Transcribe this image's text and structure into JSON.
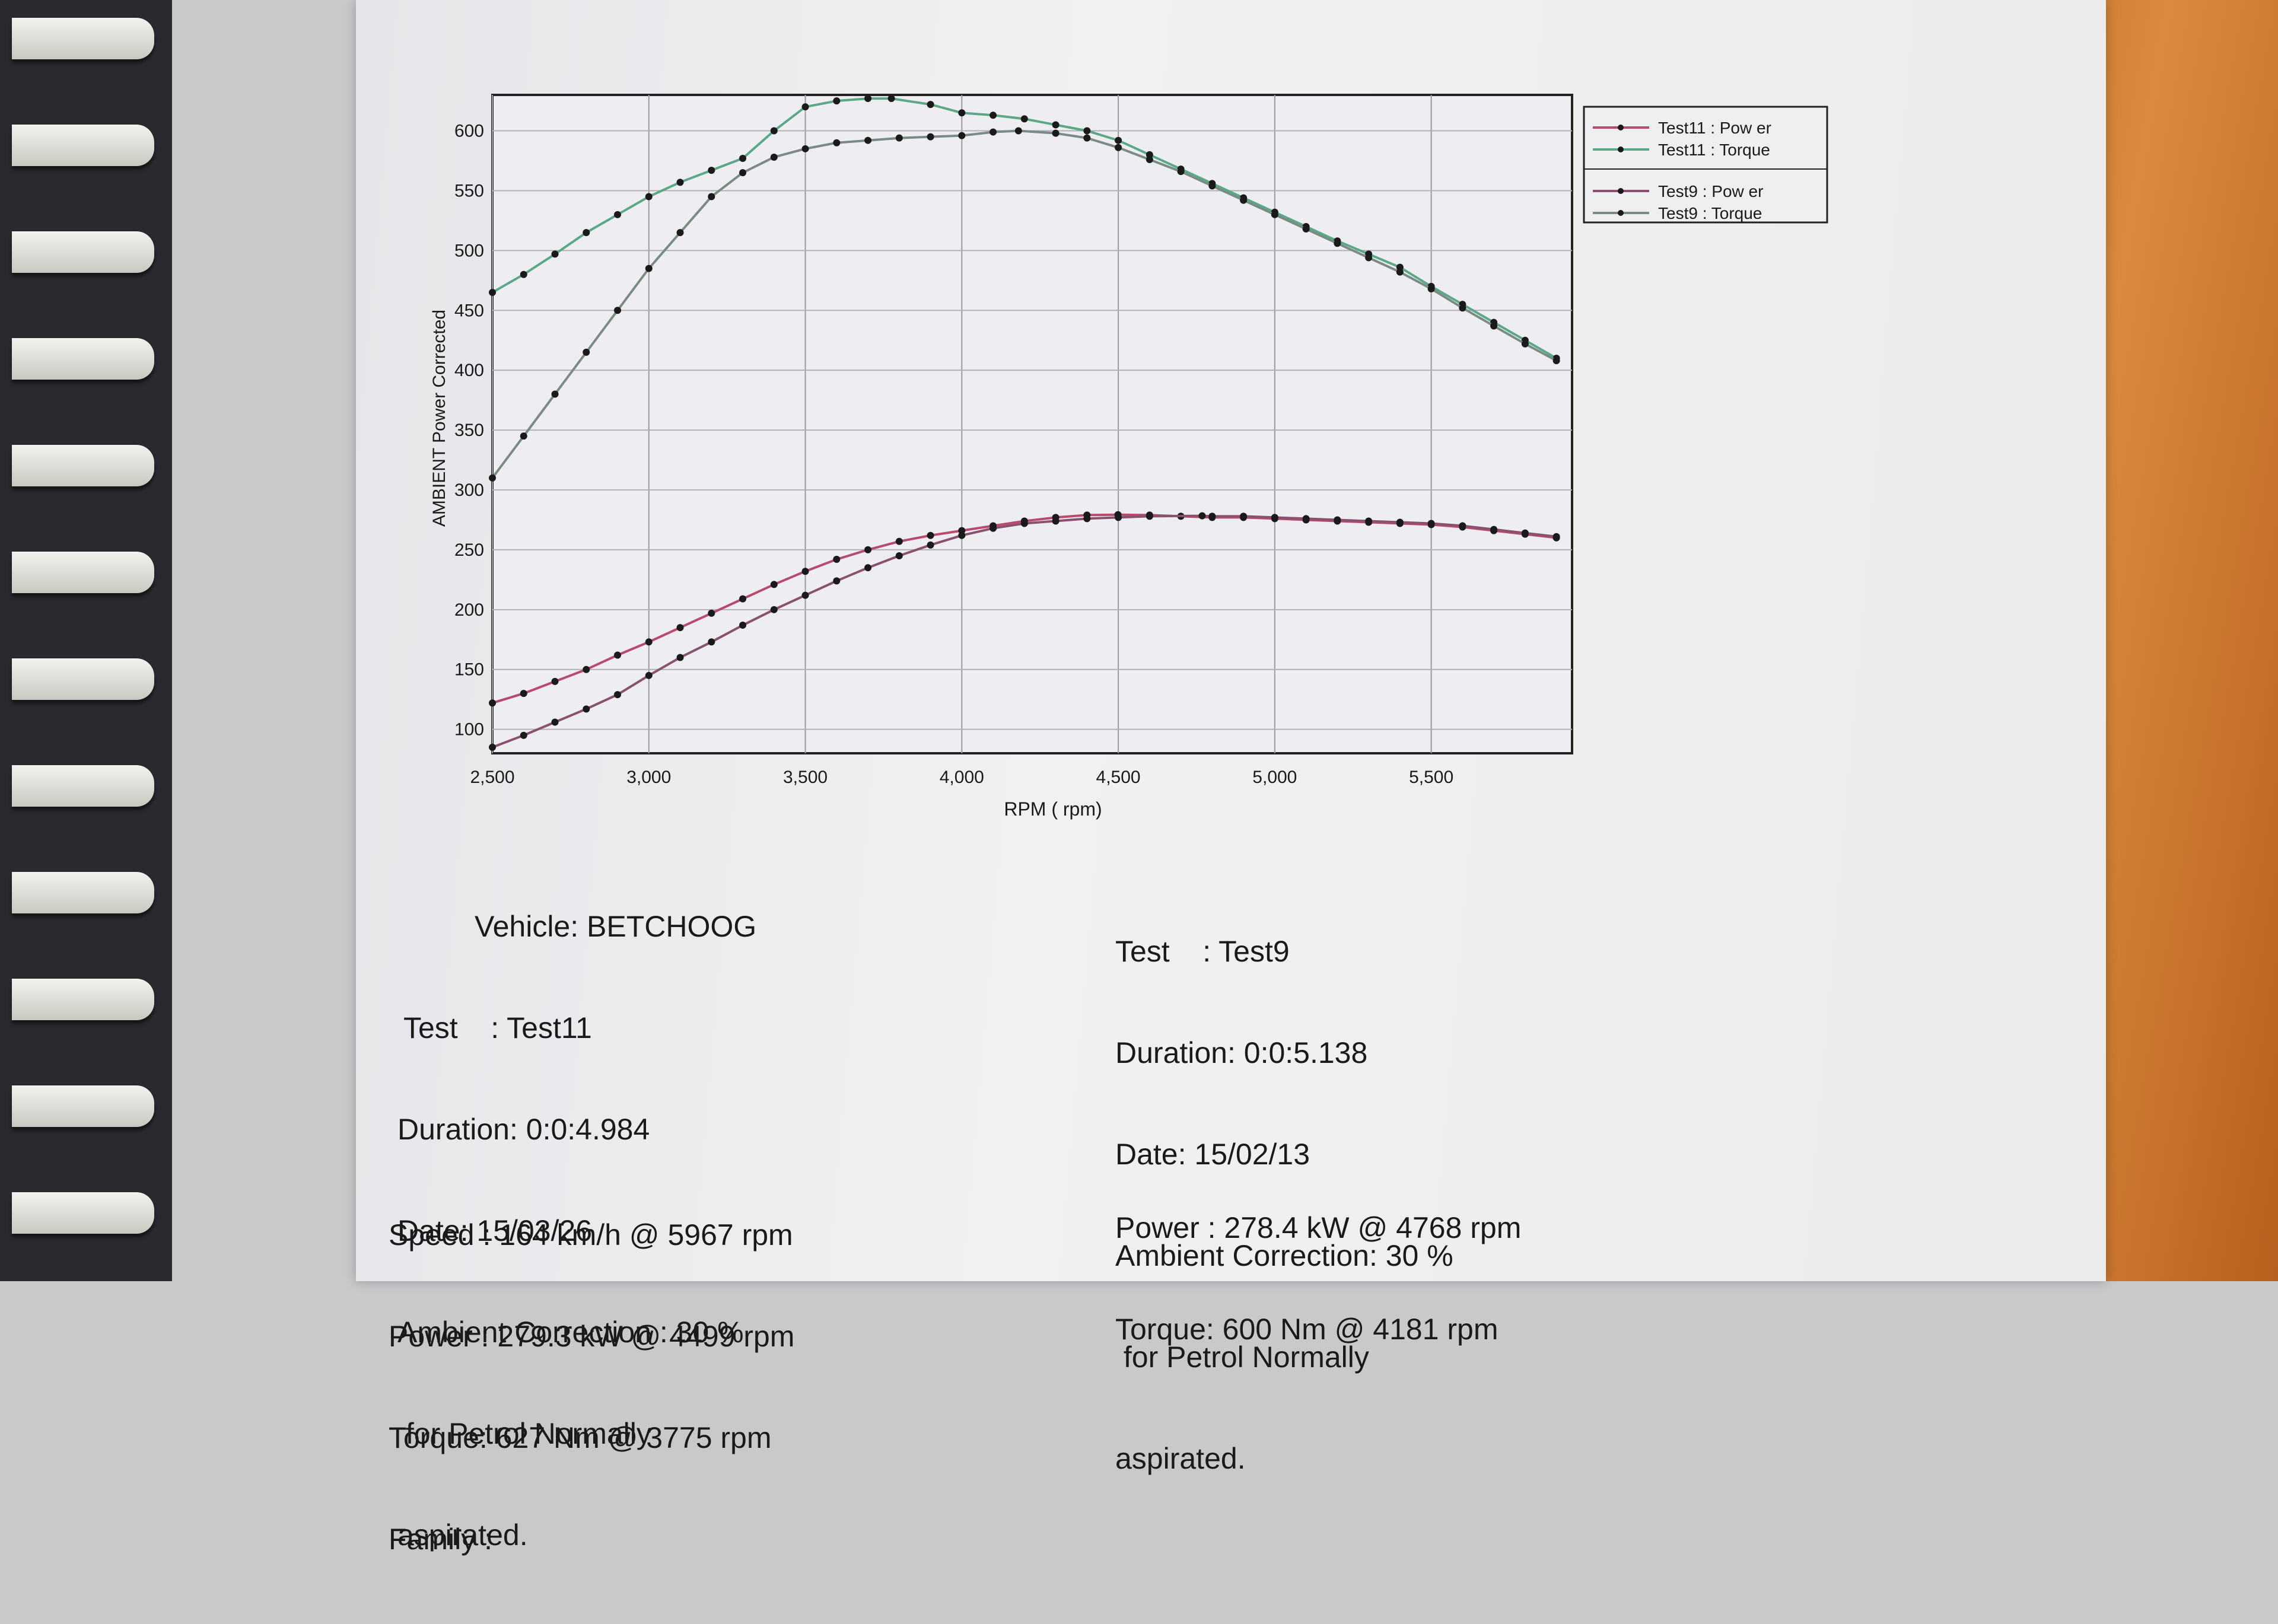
{
  "chart_data": {
    "type": "line",
    "xlabel": "RPM ( rpm)",
    "ylabel": "AMBIENT Power Corrected",
    "xlim": [
      2500,
      5950
    ],
    "ylim": [
      80,
      630
    ],
    "x_ticks": [
      "2,500",
      "3,000",
      "3,500",
      "4,000",
      "4,500",
      "5,000",
      "5,500"
    ],
    "y_ticks": [
      "100",
      "150",
      "200",
      "250",
      "300",
      "350",
      "400",
      "450",
      "500",
      "550",
      "600"
    ],
    "grid": true,
    "legend_position": "top-right, outside plot",
    "series": [
      {
        "name": "Test11 : Pow er",
        "color": "#b84a6e",
        "x": [
          2500,
          2600,
          2700,
          2800,
          2900,
          3000,
          3100,
          3200,
          3300,
          3400,
          3500,
          3600,
          3700,
          3800,
          3900,
          4000,
          4100,
          4200,
          4300,
          4400,
          4499,
          4600,
          4700,
          4800,
          4900,
          5000,
          5100,
          5200,
          5300,
          5400,
          5500,
          5600,
          5700,
          5800,
          5900
        ],
        "y": [
          122,
          130,
          140,
          150,
          162,
          173,
          185,
          197,
          209,
          221,
          232,
          242,
          250,
          257,
          262,
          266,
          270,
          274,
          277,
          279,
          279.3,
          279,
          278,
          277,
          277,
          276,
          275,
          274,
          273,
          272,
          271,
          269,
          266,
          263,
          260
        ]
      },
      {
        "name": "Test11 : Torque",
        "color": "#5aa886",
        "x": [
          2500,
          2600,
          2700,
          2800,
          2900,
          3000,
          3100,
          3200,
          3300,
          3400,
          3500,
          3600,
          3700,
          3775,
          3900,
          4000,
          4100,
          4200,
          4300,
          4400,
          4500,
          4600,
          4700,
          4800,
          4900,
          5000,
          5100,
          5200,
          5300,
          5400,
          5500,
          5600,
          5700,
          5800,
          5900
        ],
        "y": [
          465,
          480,
          497,
          515,
          530,
          545,
          557,
          567,
          577,
          600,
          620,
          625,
          627,
          627,
          622,
          615,
          613,
          610,
          605,
          600,
          592,
          580,
          568,
          556,
          544,
          532,
          520,
          508,
          497,
          486,
          470,
          455,
          440,
          425,
          410
        ]
      },
      {
        "name": "Test9 : Pow er",
        "color": "#8a5070",
        "x": [
          2500,
          2600,
          2700,
          2800,
          2900,
          3000,
          3100,
          3200,
          3300,
          3400,
          3500,
          3600,
          3700,
          3800,
          3900,
          4000,
          4100,
          4200,
          4300,
          4400,
          4500,
          4600,
          4768,
          4800,
          4900,
          5000,
          5100,
          5200,
          5300,
          5400,
          5500,
          5600,
          5700,
          5800,
          5900
        ],
        "y": [
          85,
          95,
          106,
          117,
          129,
          145,
          160,
          173,
          187,
          200,
          212,
          224,
          235,
          245,
          254,
          262,
          268,
          272,
          274,
          276,
          277,
          278,
          278.4,
          278,
          278,
          277,
          276,
          275,
          274,
          273,
          272,
          270,
          267,
          264,
          261
        ]
      },
      {
        "name": "Test9 : Torque",
        "color": "#7a8a84",
        "x": [
          2500,
          2600,
          2700,
          2800,
          2900,
          3000,
          3100,
          3200,
          3300,
          3400,
          3500,
          3600,
          3700,
          3800,
          3900,
          4000,
          4100,
          4181,
          4300,
          4400,
          4500,
          4600,
          4700,
          4800,
          4900,
          5000,
          5100,
          5200,
          5300,
          5400,
          5500,
          5600,
          5700,
          5800,
          5900
        ],
        "y": [
          310,
          345,
          380,
          415,
          450,
          485,
          515,
          545,
          565,
          578,
          585,
          590,
          592,
          594,
          595,
          596,
          599,
          600,
          598,
          594,
          586,
          576,
          566,
          554,
          542,
          530,
          518,
          506,
          494,
          482,
          468,
          452,
          437,
          422,
          408
        ]
      }
    ]
  },
  "left_block": {
    "vehicle": "Vehicle: BETCHOOG",
    "test": "Test    : Test11",
    "duration": "Duration: 0:0:4.984",
    "date": "Date: 15/03/26",
    "correction": "Ambient Correction : 30 %",
    "fuel": " for Petrol Normally",
    "aspiration": "aspirated.",
    "speed": "Speed : 164 km/h @ 5967 rpm",
    "power": "Power : 279.3 kW @ 4499 rpm",
    "torque": "Torque: 627 Nm @ 3775 rpm",
    "family": "Family :"
  },
  "right_block": {
    "test": "Test    : Test9",
    "duration": "Duration: 0:0:5.138",
    "date": "Date: 15/02/13",
    "correction": "Ambient Correction: 30 %",
    "fuel": " for Petrol Normally",
    "aspiration": "aspirated.",
    "power": "Power : 278.4 kW @ 4768 rpm",
    "torque": "Torque: 600 Nm @ 4181 rpm"
  }
}
